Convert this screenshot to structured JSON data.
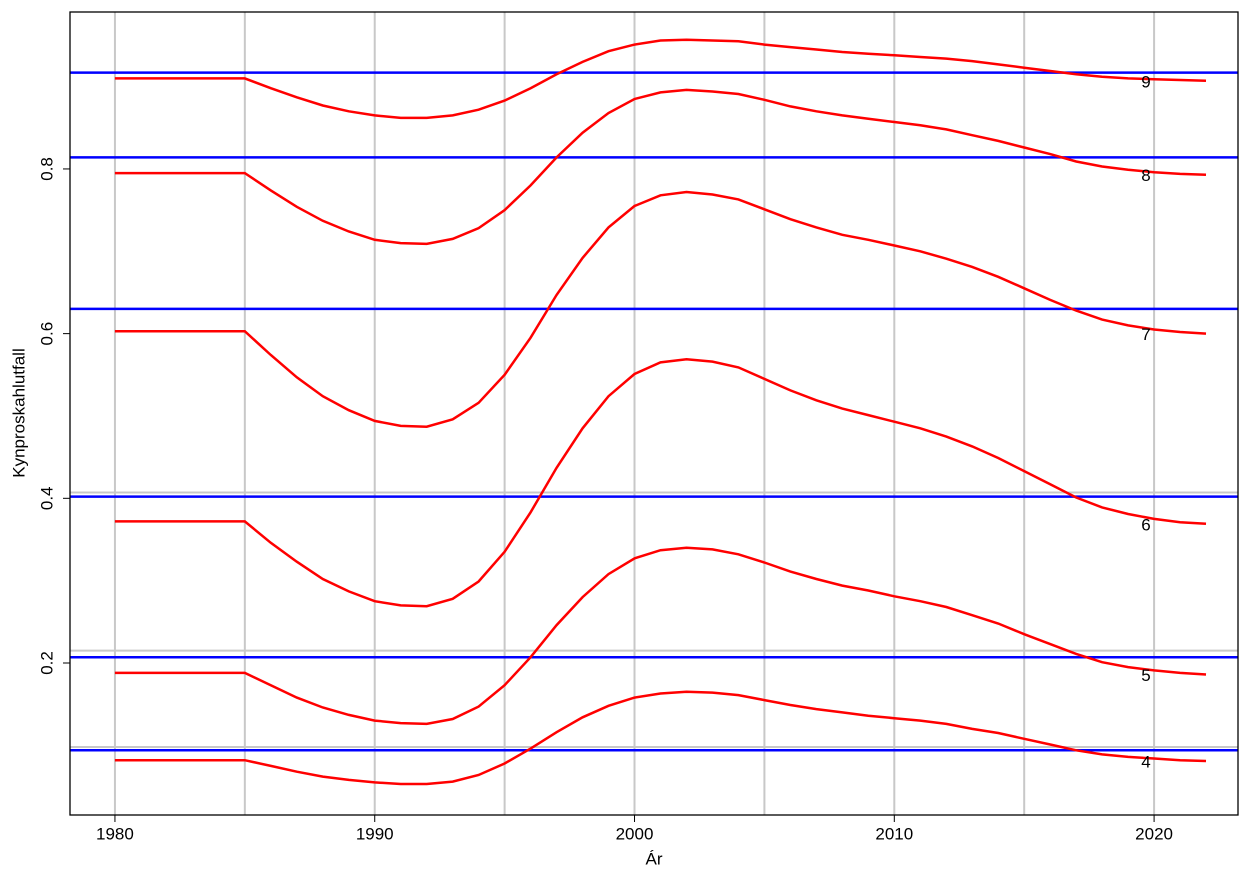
{
  "chart_data": {
    "type": "line",
    "xlabel": "Ár",
    "ylabel": "Kynproskahlutfall",
    "x": [
      1980,
      1981,
      1982,
      1983,
      1984,
      1985,
      1986,
      1987,
      1988,
      1989,
      1990,
      1991,
      1992,
      1993,
      1994,
      1995,
      1996,
      1997,
      1998,
      1999,
      2000,
      2001,
      2002,
      2003,
      2004,
      2005,
      2006,
      2007,
      2008,
      2009,
      2010,
      2011,
      2012,
      2013,
      2014,
      2015,
      2016,
      2017,
      2018,
      2019,
      2020,
      2021,
      2022
    ],
    "series": [
      {
        "name": "9",
        "color": "#ff0000",
        "values": [
          0.91,
          0.91,
          0.91,
          0.91,
          0.91,
          0.91,
          0.898,
          0.887,
          0.877,
          0.87,
          0.865,
          0.862,
          0.862,
          0.865,
          0.872,
          0.883,
          0.898,
          0.915,
          0.93,
          0.943,
          0.951,
          0.956,
          0.957,
          0.956,
          0.955,
          0.951,
          0.948,
          0.945,
          0.942,
          0.94,
          0.938,
          0.936,
          0.934,
          0.931,
          0.927,
          0.923,
          0.919,
          0.915,
          0.912,
          0.91,
          0.909,
          0.908,
          0.907
        ]
      },
      {
        "name": "8",
        "color": "#ff0000",
        "values": [
          0.795,
          0.795,
          0.795,
          0.795,
          0.795,
          0.795,
          0.774,
          0.754,
          0.737,
          0.724,
          0.714,
          0.71,
          0.709,
          0.715,
          0.728,
          0.75,
          0.78,
          0.814,
          0.844,
          0.868,
          0.885,
          0.893,
          0.896,
          0.894,
          0.891,
          0.884,
          0.876,
          0.87,
          0.865,
          0.861,
          0.857,
          0.853,
          0.848,
          0.841,
          0.834,
          0.826,
          0.818,
          0.809,
          0.803,
          0.799,
          0.796,
          0.794,
          0.793
        ]
      },
      {
        "name": "7",
        "color": "#ff0000",
        "values": [
          0.603,
          0.603,
          0.603,
          0.603,
          0.603,
          0.603,
          0.574,
          0.547,
          0.524,
          0.507,
          0.494,
          0.488,
          0.487,
          0.496,
          0.516,
          0.55,
          0.595,
          0.647,
          0.692,
          0.729,
          0.755,
          0.768,
          0.772,
          0.769,
          0.763,
          0.751,
          0.739,
          0.729,
          0.72,
          0.714,
          0.707,
          0.7,
          0.691,
          0.681,
          0.669,
          0.655,
          0.641,
          0.628,
          0.617,
          0.61,
          0.605,
          0.602,
          0.6
        ]
      },
      {
        "name": "6",
        "color": "#ff0000",
        "values": [
          0.372,
          0.372,
          0.372,
          0.372,
          0.372,
          0.372,
          0.346,
          0.323,
          0.302,
          0.287,
          0.275,
          0.27,
          0.269,
          0.278,
          0.299,
          0.335,
          0.383,
          0.437,
          0.485,
          0.524,
          0.551,
          0.565,
          0.569,
          0.566,
          0.559,
          0.545,
          0.531,
          0.519,
          0.509,
          0.501,
          0.493,
          0.485,
          0.475,
          0.463,
          0.449,
          0.433,
          0.417,
          0.401,
          0.389,
          0.381,
          0.375,
          0.371,
          0.369
        ]
      },
      {
        "name": "5",
        "color": "#ff0000",
        "values": [
          0.188,
          0.188,
          0.188,
          0.188,
          0.188,
          0.188,
          0.173,
          0.158,
          0.146,
          0.137,
          0.13,
          0.127,
          0.126,
          0.132,
          0.147,
          0.173,
          0.207,
          0.246,
          0.28,
          0.308,
          0.327,
          0.337,
          0.34,
          0.338,
          0.332,
          0.322,
          0.311,
          0.302,
          0.294,
          0.288,
          0.281,
          0.275,
          0.268,
          0.258,
          0.248,
          0.235,
          0.223,
          0.211,
          0.201,
          0.195,
          0.191,
          0.188,
          0.186
        ]
      },
      {
        "name": "4",
        "color": "#ff0000",
        "values": [
          0.082,
          0.082,
          0.082,
          0.082,
          0.082,
          0.082,
          0.075,
          0.068,
          0.062,
          0.058,
          0.055,
          0.053,
          0.053,
          0.056,
          0.064,
          0.078,
          0.096,
          0.116,
          0.134,
          0.148,
          0.158,
          0.163,
          0.165,
          0.164,
          0.161,
          0.155,
          0.149,
          0.144,
          0.14,
          0.136,
          0.133,
          0.13,
          0.126,
          0.12,
          0.115,
          0.108,
          0.101,
          0.094,
          0.089,
          0.086,
          0.084,
          0.082,
          0.081
        ]
      }
    ],
    "reference_lines": [
      {
        "color": "#c8c8c8",
        "values": [
          0.098,
          0.215,
          0.407
        ]
      },
      {
        "color": "#0000ff",
        "values": [
          0.094,
          0.207,
          0.402,
          0.63,
          0.814,
          0.917
        ]
      }
    ],
    "xgrid": [
      1980,
      1985,
      1990,
      1995,
      2000,
      2005,
      2010,
      2015,
      2020
    ],
    "xlim": [
      1978.27,
      2023.23
    ],
    "ylim": [
      0.0154,
      0.9906
    ],
    "xticks": [
      1980,
      1990,
      2000,
      2010,
      2020
    ],
    "yticks": [
      0.2,
      0.4,
      0.6,
      0.8
    ]
  }
}
